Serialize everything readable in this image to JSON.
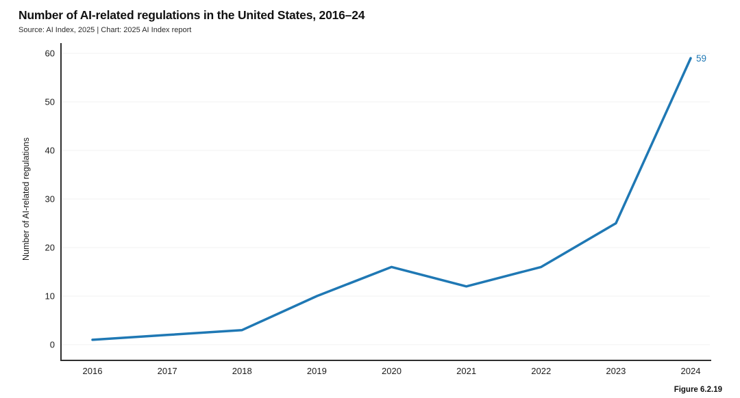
{
  "header": {
    "title": "Number of AI-related regulations in the United States, 2016–24",
    "source": "Source: AI Index, 2025 | Chart: 2025 AI Index report"
  },
  "figure_label": "Figure 6.2.19",
  "chart_data": {
    "type": "line",
    "title": "Number of AI-related regulations in the United States, 2016–24",
    "categories": [
      "2016",
      "2017",
      "2018",
      "2019",
      "2020",
      "2021",
      "2022",
      "2023",
      "2024"
    ],
    "series": [
      {
        "name": "Number of AI-related regulations",
        "values": [
          1,
          2,
          3,
          10,
          16,
          12,
          16,
          25,
          59
        ]
      }
    ],
    "end_label": "59",
    "xlabel": "",
    "ylabel": "Number of AI-related regulations",
    "yticks": [
      0,
      10,
      20,
      30,
      40,
      50,
      60
    ],
    "ylim": [
      0,
      60
    ],
    "grid": "horizontal",
    "legend": "none",
    "colors": {
      "line": "#1F78B4",
      "grid": "#f0f0f0",
      "axis": "#2e2e2e",
      "text": "#1a1a1a"
    }
  }
}
